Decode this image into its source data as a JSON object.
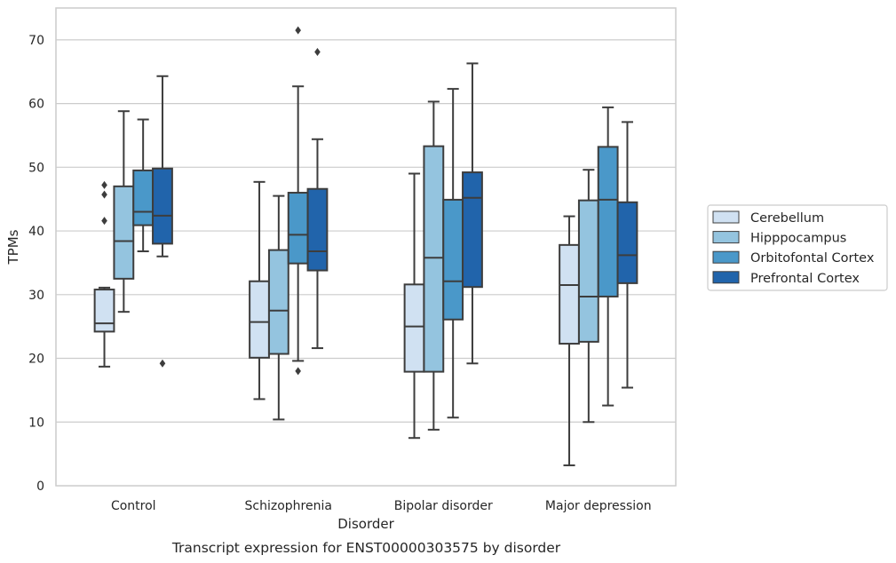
{
  "chart_data": {
    "type": "boxplot",
    "title": "",
    "caption": "Transcript expression for ENST00000303575 by disorder",
    "xlabel": "Disorder",
    "ylabel": "TPMs",
    "ylim": [
      0,
      75
    ],
    "yticks": [
      0,
      10,
      20,
      30,
      40,
      50,
      60,
      70
    ],
    "grid": "horizontal",
    "legend_position": "right",
    "categories": [
      "Control",
      "Schizophrenia",
      "Bipolar disorder",
      "Major depression"
    ],
    "series": [
      {
        "name": "Cerebellum",
        "color": "#d0e1f2",
        "boxes": [
          {
            "whislo": 18.7,
            "q1": 24.2,
            "median": 25.5,
            "q3": 30.8,
            "whishi": 31.1,
            "fliers": [
              41.6,
              45.7,
              47.2
            ]
          },
          {
            "whislo": 13.6,
            "q1": 20.1,
            "median": 25.7,
            "q3": 32.1,
            "whishi": 47.7,
            "fliers": []
          },
          {
            "whislo": 7.5,
            "q1": 17.9,
            "median": 25.0,
            "q3": 31.6,
            "whishi": 49.0,
            "fliers": []
          },
          {
            "whislo": 3.2,
            "q1": 22.3,
            "median": 31.5,
            "q3": 37.8,
            "whishi": 42.3,
            "fliers": []
          }
        ]
      },
      {
        "name": "Hipppocampus",
        "color": "#94c4df",
        "boxes": [
          {
            "whislo": 27.3,
            "q1": 32.5,
            "median": 38.4,
            "q3": 47.0,
            "whishi": 58.8,
            "fliers": []
          },
          {
            "whislo": 10.4,
            "q1": 20.7,
            "median": 27.5,
            "q3": 37.0,
            "whishi": 45.5,
            "fliers": []
          },
          {
            "whislo": 8.8,
            "q1": 17.9,
            "median": 35.8,
            "q3": 53.3,
            "whishi": 60.3,
            "fliers": []
          },
          {
            "whislo": 10.0,
            "q1": 22.6,
            "median": 29.7,
            "q3": 44.8,
            "whishi": 49.6,
            "fliers": []
          }
        ]
      },
      {
        "name": "Orbitofontal Cortex",
        "color": "#4a98c9",
        "boxes": [
          {
            "whislo": 36.8,
            "q1": 40.9,
            "median": 43.0,
            "q3": 49.5,
            "whishi": 57.5,
            "fliers": []
          },
          {
            "whislo": 19.6,
            "q1": 34.9,
            "median": 39.4,
            "q3": 46.0,
            "whishi": 62.7,
            "fliers": [
              18.0,
              71.5
            ]
          },
          {
            "whislo": 10.7,
            "q1": 26.1,
            "median": 32.1,
            "q3": 44.9,
            "whishi": 62.3,
            "fliers": []
          },
          {
            "whislo": 12.6,
            "q1": 29.7,
            "median": 44.9,
            "q3": 53.2,
            "whishi": 59.4,
            "fliers": []
          }
        ]
      },
      {
        "name": "Prefrontal Cortex",
        "color": "#2164ab",
        "boxes": [
          {
            "whislo": 36.0,
            "q1": 38.0,
            "median": 42.4,
            "q3": 49.8,
            "whishi": 64.3,
            "fliers": [
              19.2
            ]
          },
          {
            "whislo": 21.6,
            "q1": 33.8,
            "median": 36.8,
            "q3": 46.6,
            "whishi": 54.4,
            "fliers": [
              68.1
            ]
          },
          {
            "whislo": 19.2,
            "q1": 31.2,
            "median": 45.2,
            "q3": 49.2,
            "whishi": 66.3,
            "fliers": []
          },
          {
            "whislo": 15.4,
            "q1": 31.8,
            "median": 36.2,
            "q3": 44.5,
            "whishi": 57.1,
            "fliers": []
          }
        ]
      }
    ]
  }
}
